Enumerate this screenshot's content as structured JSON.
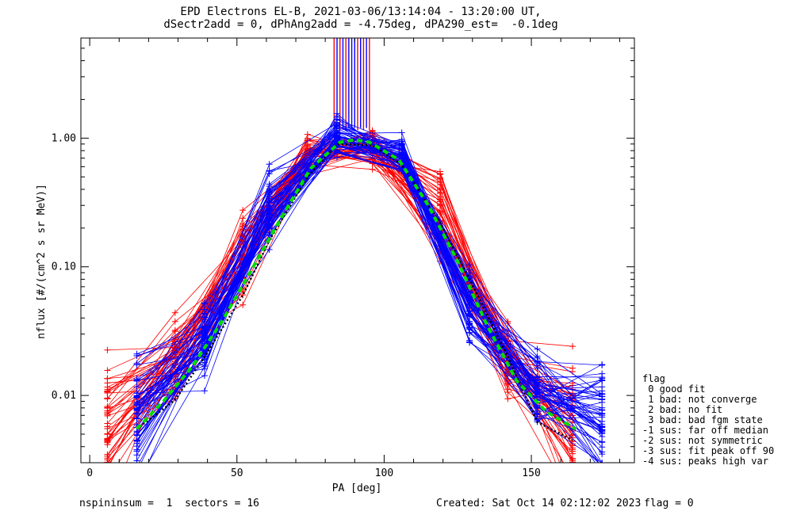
{
  "title_line1": "EPD Electrons EL-B, 2021-03-06/13:14:04 - 13:20:00 UT,",
  "title_line2": "dSectr2add = 0, dPhAng2add = -4.75deg, dPA290_est=  -0.1deg",
  "footer": {
    "left": "nspininsum =  1  sectors = 16",
    "created": "Created: Sat Oct 14 02:12:02 2023",
    "flag": "flag = 0"
  },
  "legend": {
    "title": "flag",
    "items": [
      " 0 good fit",
      " 1 bad: not converge",
      " 2 bad: no fit",
      " 3 bad: bad fgm state",
      "-1 sus: far off median",
      "-2 sus: not symmetric",
      "-3 sus: fit peak off 90",
      "-4 sus: peaks high var"
    ]
  },
  "colors": {
    "red": "#ff0000",
    "blue": "#0000ff",
    "fit": "#00dd00",
    "median": "#000000"
  },
  "chart_data": {
    "type": "line",
    "xlabel": "PA [deg]",
    "ylabel": "nflux [#/(cm^2 s sr MeV)]",
    "xlim": [
      -3,
      185
    ],
    "ylim": [
      0.003,
      6.0
    ],
    "yscale": "log",
    "xticks": [
      0,
      50,
      100,
      150
    ],
    "xtick_labels": [
      "0",
      "50",
      "100",
      "150"
    ],
    "yticks": [
      0.01,
      0.1,
      1.0
    ],
    "ytick_labels": [
      "0.01",
      "0.10",
      "1.00"
    ],
    "pa_grid": [
      6,
      16,
      29,
      39,
      52,
      61,
      74,
      84,
      96,
      106,
      119,
      129,
      142,
      152,
      164,
      174
    ],
    "series": [
      {
        "color": "red",
        "count": 45,
        "x": [
          6,
          29,
          52,
          74,
          96,
          119,
          142,
          164
        ],
        "y": [
          0.006,
          0.018,
          0.13,
          0.75,
          0.85,
          0.24,
          0.018,
          0.0058
        ],
        "spread": 0.35
      },
      {
        "color": "blue",
        "count": 55,
        "x": [
          16,
          39,
          61,
          84,
          106,
          129,
          152,
          174
        ],
        "y": [
          0.0075,
          0.025,
          0.27,
          1.0,
          0.72,
          0.05,
          0.011,
          0.0065
        ],
        "spread": 0.33
      }
    ],
    "fit_curve": {
      "color": "fit",
      "style": "dashed",
      "x": [
        16,
        25,
        35,
        45,
        55,
        65,
        75,
        85,
        90,
        95,
        105,
        115,
        125,
        135,
        145,
        155,
        165
      ],
      "y": [
        0.0055,
        0.009,
        0.017,
        0.038,
        0.095,
        0.24,
        0.58,
        0.93,
        0.97,
        0.93,
        0.68,
        0.3,
        0.11,
        0.035,
        0.013,
        0.0075,
        0.0055
      ]
    },
    "median_curve": {
      "color": "median",
      "style": "dotted",
      "x": [
        16,
        29,
        39,
        52,
        61,
        74,
        84,
        96,
        106,
        119,
        129,
        142,
        152,
        164
      ],
      "y": [
        0.0055,
        0.0092,
        0.02,
        0.06,
        0.16,
        0.5,
        0.9,
        0.88,
        0.62,
        0.22,
        0.08,
        0.02,
        0.0062,
        0.0045
      ]
    },
    "spikes": [
      {
        "color": "red",
        "x": [
          83,
          85,
          87,
          91,
          93,
          95
        ],
        "y_from": 1.15,
        "y_to": 6.0
      },
      {
        "color": "blue",
        "x": [
          84,
          86,
          88,
          89,
          90,
          92,
          94
        ],
        "y_from": 1.2,
        "y_to": 6.0
      }
    ]
  }
}
